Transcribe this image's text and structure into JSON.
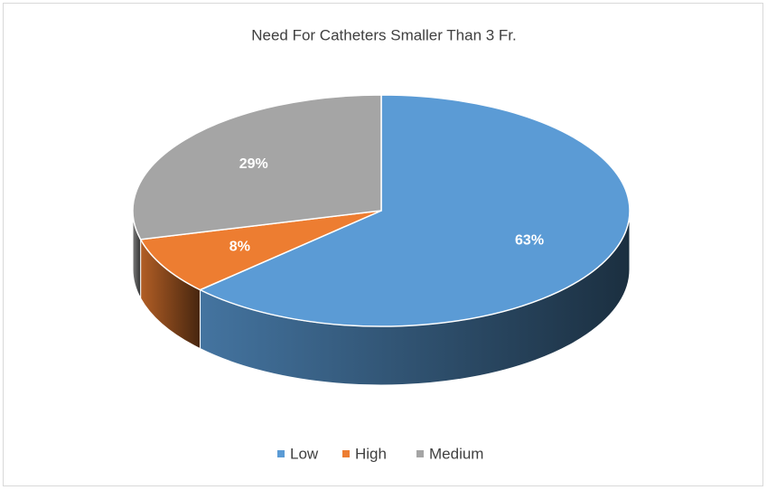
{
  "chart_data": {
    "type": "pie",
    "title": "Need For Catheters Smaller Than 3 Fr.",
    "categories": [
      "Low",
      "High",
      "Medium"
    ],
    "values": [
      63,
      8,
      29
    ],
    "value_labels": [
      "63%",
      "8%",
      "29%"
    ],
    "colors": [
      "#5b9bd5",
      "#ed7d31",
      "#a5a5a5"
    ],
    "legend": "bottom"
  }
}
